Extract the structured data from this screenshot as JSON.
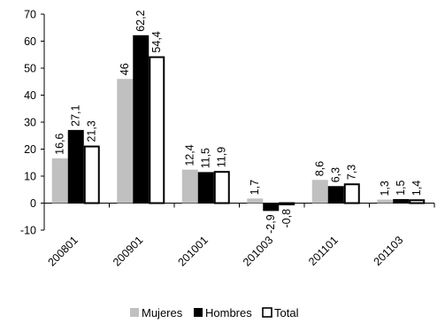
{
  "chart_data": {
    "type": "bar",
    "categories": [
      "200801",
      "200901",
      "201001",
      "201003",
      "201101",
      "201103"
    ],
    "series": [
      {
        "name": "Mujeres",
        "values": [
          16.6,
          46,
          12.4,
          1.7,
          8.6,
          1.3
        ],
        "labels": [
          "16,6",
          "46",
          "12,4",
          "1,7",
          "8,6",
          "1,3"
        ]
      },
      {
        "name": "Hombres",
        "values": [
          27.1,
          62.2,
          11.5,
          -2.9,
          6.3,
          1.5
        ],
        "labels": [
          "27,1",
          "62,2",
          "11,5",
          "-2,9",
          "6,3",
          "1,5"
        ]
      },
      {
        "name": "Total",
        "values": [
          21.3,
          54.4,
          11.9,
          -0.8,
          7.3,
          1.4
        ],
        "labels": [
          "21,3",
          "54,4",
          "11,9",
          "-0,8",
          "7,3",
          "1,4"
        ]
      }
    ],
    "ylim": [
      -10,
      70
    ],
    "yticks": [
      -10,
      0,
      10,
      20,
      30,
      40,
      50,
      60,
      70
    ],
    "grid": false,
    "legend_position": "bottom",
    "colors": {
      "Mujeres": "#c0c0c0",
      "Hombres": "#000000",
      "Total": "#ffffff",
      "outline": "#000000"
    }
  }
}
